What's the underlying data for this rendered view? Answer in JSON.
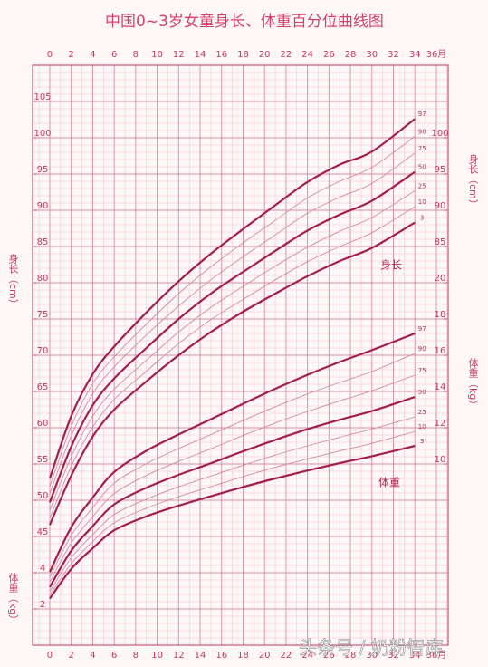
{
  "title": "中国0~3岁女童身长、体重百分位曲线图",
  "watermark": "头条号 / 奶粉智库",
  "chart_data": [
    {
      "type": "line",
      "y_label": "身长（cm）",
      "curve_label": "身长",
      "xlim": [
        -1.6,
        37.1
      ],
      "xticks": [
        0,
        2,
        4,
        6,
        8,
        10,
        12,
        14,
        16,
        18,
        20,
        22,
        24,
        26,
        28,
        30,
        32,
        34,
        {
          "value": 36,
          "label": "36月"
        }
      ],
      "ylim": [
        30,
        110
      ],
      "yticks": [
        45,
        50,
        55,
        60,
        65,
        70,
        75,
        80,
        85,
        90,
        95,
        100,
        105
      ],
      "yticks_right": [
        85,
        90,
        95,
        100
      ],
      "grid": true,
      "x": [
        0,
        2,
        4,
        6,
        9,
        12,
        15,
        18,
        21,
        24,
        27,
        30,
        34
      ],
      "series": [
        {
          "name": "3",
          "color": "#a31f4b",
          "values": [
            46.6,
            53.4,
            58.8,
            62.5,
            66.4,
            70.0,
            73.2,
            76.0,
            78.5,
            80.9,
            83.0,
            84.8,
            88.3
          ]
        },
        {
          "name": "10",
          "color": "#d48aa0",
          "values": [
            47.5,
            54.7,
            60.1,
            63.9,
            67.8,
            71.6,
            74.9,
            77.7,
            80.4,
            82.9,
            85.0,
            86.9,
            90.5
          ]
        },
        {
          "name": "25",
          "color": "#d48aa0",
          "values": [
            48.6,
            56.0,
            61.6,
            65.3,
            69.3,
            73.2,
            76.6,
            79.5,
            82.3,
            84.9,
            87.1,
            89.0,
            92.7
          ]
        },
        {
          "name": "50",
          "color": "#a31f4b",
          "values": [
            49.7,
            57.4,
            63.1,
            66.8,
            71.0,
            75.0,
            78.5,
            81.5,
            84.4,
            87.2,
            89.4,
            91.3,
            95.3
          ]
        },
        {
          "name": "75",
          "color": "#d48aa0",
          "values": [
            50.9,
            58.9,
            64.7,
            68.4,
            72.8,
            76.8,
            80.4,
            83.6,
            86.6,
            89.6,
            91.8,
            93.7,
            97.9
          ]
        },
        {
          "name": "90",
          "color": "#d48aa0",
          "values": [
            51.9,
            60.2,
            66.1,
            69.8,
            74.3,
            78.5,
            82.2,
            85.5,
            88.6,
            91.7,
            94.0,
            95.9,
            100.2
          ]
        },
        {
          "name": "97",
          "color": "#a31f4b",
          "values": [
            53.0,
            61.6,
            67.4,
            71.2,
            75.9,
            80.2,
            84.0,
            87.4,
            90.7,
            93.9,
            96.3,
            98.1,
            102.6
          ]
        }
      ]
    },
    {
      "type": "line",
      "y_label": "体重（kg）",
      "curve_label": "体重",
      "xlim": [
        -1.6,
        37.1
      ],
      "xticks": [
        0,
        2,
        4,
        6,
        8,
        10,
        12,
        14,
        16,
        18,
        20,
        22,
        24,
        26,
        28,
        30,
        32,
        34,
        {
          "value": 36,
          "label": "36月"
        }
      ],
      "ylim": [
        0,
        32
      ],
      "yticks": [
        2,
        4
      ],
      "yticks_right": [
        10,
        12,
        14,
        16,
        18,
        20
      ],
      "grid": true,
      "x": [
        0,
        2,
        4,
        6,
        9,
        12,
        15,
        18,
        21,
        24,
        27,
        30,
        34
      ],
      "series": [
        {
          "name": "3",
          "color": "#a31f4b",
          "values": [
            2.57,
            4.21,
            5.35,
            6.34,
            7.11,
            7.7,
            8.22,
            8.73,
            9.2,
            9.64,
            10.05,
            10.43,
            11.0
          ]
        },
        {
          "name": "10",
          "color": "#d48aa0",
          "values": [
            2.76,
            4.5,
            5.71,
            6.76,
            7.56,
            8.2,
            8.75,
            9.3,
            9.82,
            10.28,
            10.72,
            11.14,
            11.8
          ]
        },
        {
          "name": "25",
          "color": "#d48aa0",
          "values": [
            2.96,
            4.82,
            6.09,
            7.21,
            8.06,
            8.74,
            9.33,
            9.93,
            10.49,
            11.0,
            11.48,
            11.93,
            12.6
          ]
        },
        {
          "name": "50",
          "color": "#a31f4b",
          "values": [
            3.21,
            5.21,
            6.57,
            7.77,
            8.69,
            9.4,
            10.04,
            10.7,
            11.33,
            11.92,
            12.44,
            12.92,
            13.7
          ]
        },
        {
          "name": "75",
          "color": "#d48aa0",
          "values": [
            3.49,
            5.64,
            7.09,
            8.37,
            9.37,
            10.14,
            10.84,
            11.57,
            12.26,
            12.9,
            13.48,
            14.04,
            14.9
          ]
        },
        {
          "name": "90",
          "color": "#d48aa0",
          "values": [
            3.75,
            6.06,
            7.59,
            8.94,
            10.02,
            10.85,
            11.62,
            12.4,
            13.16,
            13.86,
            14.5,
            15.1,
            16.1
          ]
        },
        {
          "name": "97",
          "color": "#a31f4b",
          "values": [
            4.04,
            6.51,
            8.15,
            9.56,
            10.73,
            11.63,
            12.47,
            13.32,
            14.15,
            14.92,
            15.63,
            16.28,
            17.2
          ]
        }
      ]
    }
  ]
}
